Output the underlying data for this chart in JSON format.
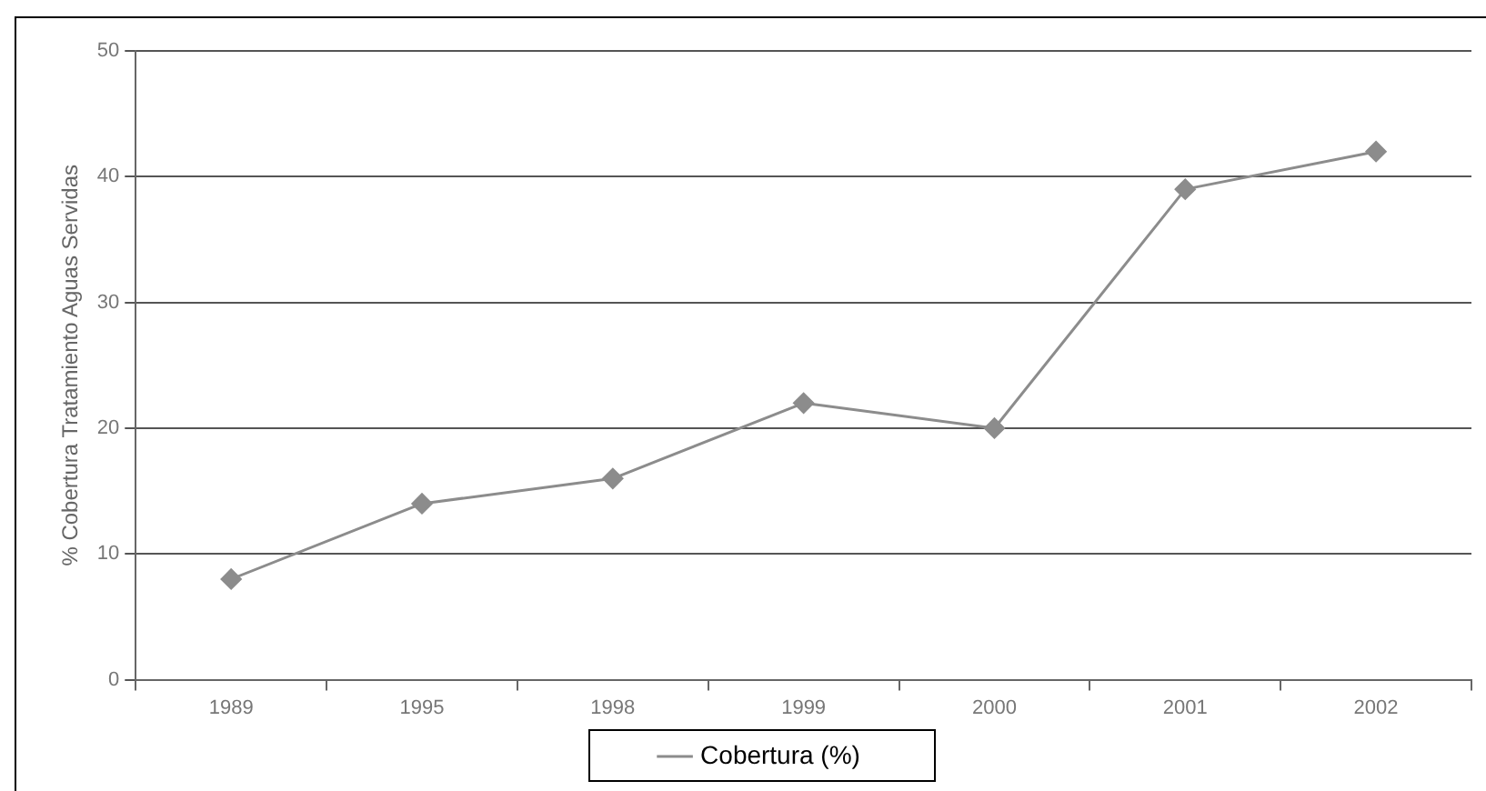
{
  "chart_data": {
    "type": "line",
    "ylabel": "% Cobertura Tratamiento Aguas Servidas",
    "categories": [
      "1989",
      "1995",
      "1998",
      "1999",
      "2000",
      "2001",
      "2002"
    ],
    "series": [
      {
        "name": "Cobertura (%)",
        "color": "#8c8c8c",
        "values": [
          8,
          14,
          16,
          22,
          20,
          39,
          42
        ]
      }
    ],
    "ylim": [
      0,
      50
    ],
    "yticks": [
      0,
      10,
      20,
      30,
      40,
      50
    ],
    "grid": "y",
    "legend": "bottom",
    "marker": "diamond",
    "line_style": "solid"
  }
}
